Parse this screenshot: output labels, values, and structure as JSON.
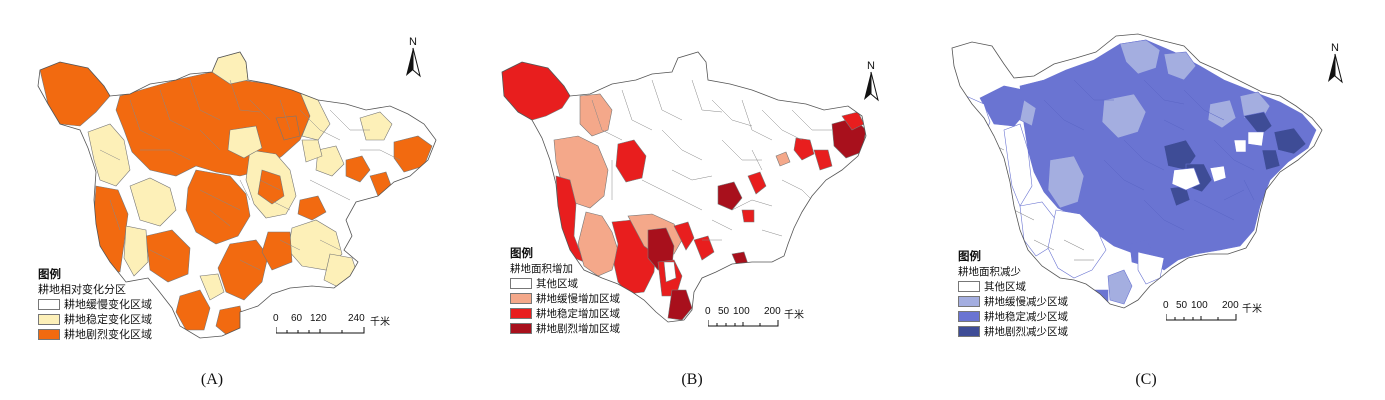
{
  "panels": {
    "a": {
      "caption": "(A)",
      "legend_title": "图例",
      "legend_subtitle": "耕地相对变化分区",
      "items": [
        {
          "label": "耕地缓慢变化区域",
          "color": "#ffffff"
        },
        {
          "label": "耕地稳定变化区域",
          "color": "#fdf0b8"
        },
        {
          "label": "耕地剧烈变化区域",
          "color": "#f26a10"
        }
      ],
      "scale_ticks": [
        "0",
        "60",
        "120",
        "240"
      ],
      "scale_unit": "千米",
      "north": "N"
    },
    "b": {
      "caption": "(B)",
      "legend_title": "图例",
      "legend_subtitle": "耕地面积增加",
      "items": [
        {
          "label": "其他区域",
          "color": "#ffffff"
        },
        {
          "label": "耕地缓慢增加区域",
          "color": "#f4a88a"
        },
        {
          "label": "耕地稳定增加区域",
          "color": "#e81e1e"
        },
        {
          "label": "耕地剧烈增加区域",
          "color": "#a8101c"
        }
      ],
      "scale_ticks": [
        "0",
        "50",
        "100",
        "200"
      ],
      "scale_unit": "千米",
      "north": "N"
    },
    "c": {
      "caption": "(C)",
      "legend_title": "图例",
      "legend_subtitle": "耕地面积减少",
      "items": [
        {
          "label": "其他区域",
          "color": "#ffffff"
        },
        {
          "label": "耕地缓慢减少区域",
          "color": "#a4aee0"
        },
        {
          "label": "耕地稳定减少区域",
          "color": "#6a74d2"
        },
        {
          "label": "耕地剧烈减少区域",
          "color": "#3e4c96"
        }
      ],
      "scale_ticks": [
        "0",
        "50",
        "100",
        "200"
      ],
      "scale_unit": "千米",
      "north": "N"
    }
  }
}
